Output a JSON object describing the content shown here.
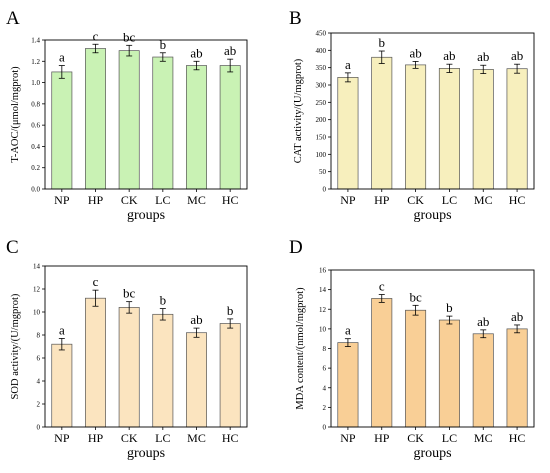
{
  "chart_data": [
    {
      "type": "bar",
      "panel_label": "A",
      "categories": [
        "NP",
        "HP",
        "CK",
        "LC",
        "MC",
        "HC"
      ],
      "values": [
        1.1,
        1.32,
        1.3,
        1.24,
        1.16,
        1.16
      ],
      "errors": [
        0.06,
        0.04,
        0.05,
        0.04,
        0.04,
        0.06
      ],
      "sig_letters": [
        "a",
        "c",
        "bc",
        "b",
        "ab",
        "ab"
      ],
      "ylabel": "T-AOC/(μmol/mgprot)",
      "xlabel": "groups",
      "ylim": [
        0,
        1.4
      ],
      "yticks": [
        "0.0",
        "0.2",
        "0.4",
        "0.6",
        "0.8",
        "1.0",
        "1.2",
        "1.4"
      ],
      "bar_color": "#c9f2b4"
    },
    {
      "type": "bar",
      "panel_label": "B",
      "categories": [
        "NP",
        "HP",
        "CK",
        "LC",
        "MC",
        "HC"
      ],
      "values": [
        322,
        380,
        358,
        348,
        345,
        347
      ],
      "errors": [
        13,
        18,
        10,
        12,
        12,
        13
      ],
      "sig_letters": [
        "a",
        "b",
        "ab",
        "ab",
        "ab",
        "ab"
      ],
      "ylabel": "CAT activity/(U/mgprot)",
      "xlabel": "groups",
      "ylim": [
        0,
        450
      ],
      "yticks": [
        "0",
        "50",
        "100",
        "150",
        "200",
        "250",
        "300",
        "350",
        "400",
        "450"
      ],
      "bar_color": "#f7efbd"
    },
    {
      "type": "bar",
      "panel_label": "C",
      "categories": [
        "NP",
        "HP",
        "CK",
        "LC",
        "MC",
        "HC"
      ],
      "values": [
        7.2,
        11.2,
        10.4,
        9.8,
        8.2,
        9.0
      ],
      "errors": [
        0.5,
        0.7,
        0.5,
        0.5,
        0.4,
        0.4
      ],
      "sig_letters": [
        "a",
        "c",
        "bc",
        "b",
        "ab",
        "b"
      ],
      "ylabel": "SOD activity/(U/mgprot)",
      "xlabel": "groups",
      "ylim": [
        0,
        14
      ],
      "yticks": [
        "0",
        "2",
        "4",
        "6",
        "8",
        "10",
        "12",
        "14"
      ],
      "bar_color": "#fbe4bf"
    },
    {
      "type": "bar",
      "panel_label": "D",
      "categories": [
        "NP",
        "HP",
        "CK",
        "LC",
        "MC",
        "HC"
      ],
      "values": [
        8.6,
        13.1,
        11.9,
        10.9,
        9.5,
        10.0
      ],
      "errors": [
        0.4,
        0.4,
        0.5,
        0.4,
        0.4,
        0.4
      ],
      "sig_letters": [
        "a",
        "c",
        "bc",
        "b",
        "ab",
        "ab"
      ],
      "ylabel": "MDA content/(nmol/mgprot)",
      "xlabel": "groups",
      "ylim": [
        0,
        16
      ],
      "yticks": [
        "0",
        "2",
        "4",
        "6",
        "8",
        "10",
        "12",
        "14",
        "16"
      ],
      "bar_color": "#f9cf96"
    }
  ]
}
